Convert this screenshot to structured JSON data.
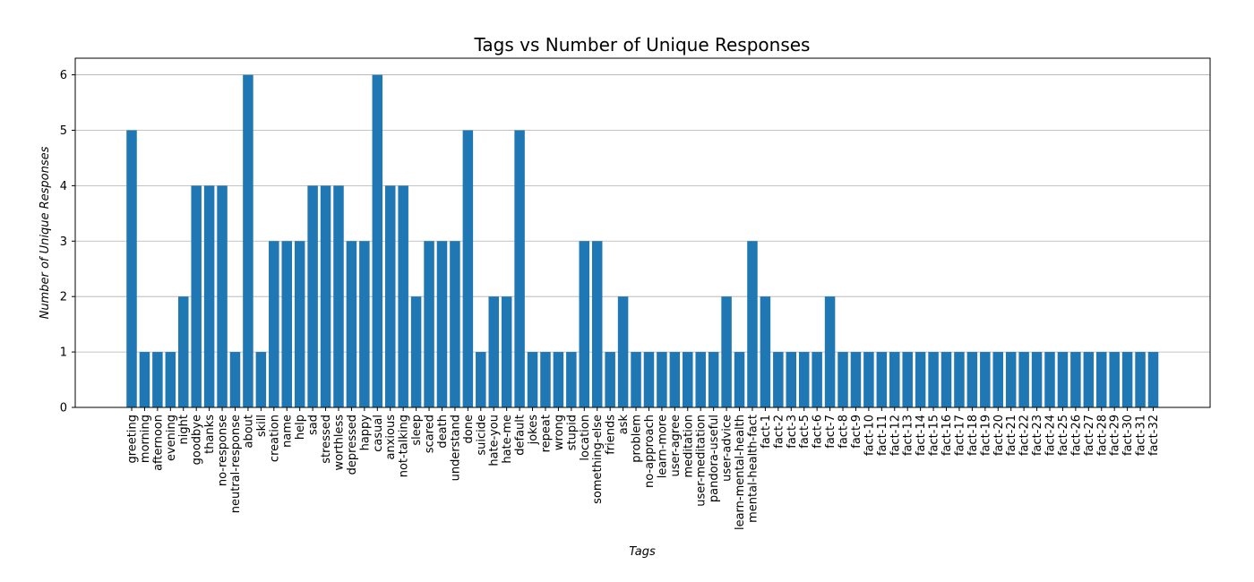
{
  "chart_data": {
    "type": "bar",
    "title": "Tags vs Number of Unique Responses",
    "xlabel": "Tags",
    "ylabel": "Number of Unique Responses",
    "ylim": [
      0,
      6.3
    ],
    "yticks": [
      0,
      1,
      2,
      3,
      4,
      5,
      6
    ],
    "grid": "y",
    "color": "#1f77b4",
    "categories": [
      "greeting",
      "morning",
      "afternoon",
      "evening",
      "night",
      "goodbye",
      "thanks",
      "no-response",
      "neutral-response",
      "about",
      "skill",
      "creation",
      "name",
      "help",
      "sad",
      "stressed",
      "worthless",
      "depressed",
      "happy",
      "casual",
      "anxious",
      "not-talking",
      "sleep",
      "scared",
      "death",
      "understand",
      "done",
      "suicide",
      "hate-you",
      "hate-me",
      "default",
      "jokes",
      "repeat",
      "wrong",
      "stupid",
      "location",
      "something-else",
      "friends",
      "ask",
      "problem",
      "no-approach",
      "learn-more",
      "user-agree",
      "meditation",
      "user-meditation",
      "pandora-useful",
      "user-advice",
      "learn-mental-health",
      "mental-health-fact",
      "fact-1",
      "fact-2",
      "fact-3",
      "fact-5",
      "fact-6",
      "fact-7",
      "fact-8",
      "fact-9",
      "fact-10",
      "fact-11",
      "fact-12",
      "fact-13",
      "fact-14",
      "fact-15",
      "fact-16",
      "fact-17",
      "fact-18",
      "fact-19",
      "fact-20",
      "fact-21",
      "fact-22",
      "fact-23",
      "fact-24",
      "fact-25",
      "fact-26",
      "fact-27",
      "fact-28",
      "fact-29",
      "fact-30",
      "fact-31",
      "fact-32"
    ],
    "values": [
      5,
      1,
      1,
      1,
      2,
      4,
      4,
      4,
      1,
      6,
      1,
      3,
      3,
      3,
      4,
      4,
      4,
      3,
      3,
      6,
      4,
      4,
      2,
      3,
      3,
      3,
      5,
      1,
      2,
      2,
      5,
      1,
      1,
      1,
      1,
      3,
      3,
      1,
      2,
      1,
      1,
      1,
      1,
      1,
      1,
      1,
      2,
      1,
      3,
      2,
      1,
      1,
      1,
      1,
      2,
      1,
      1,
      1,
      1,
      1,
      1,
      1,
      1,
      1,
      1,
      1,
      1,
      1,
      1,
      1,
      1,
      1,
      1,
      1,
      1,
      1,
      1,
      1,
      1,
      1
    ]
  }
}
